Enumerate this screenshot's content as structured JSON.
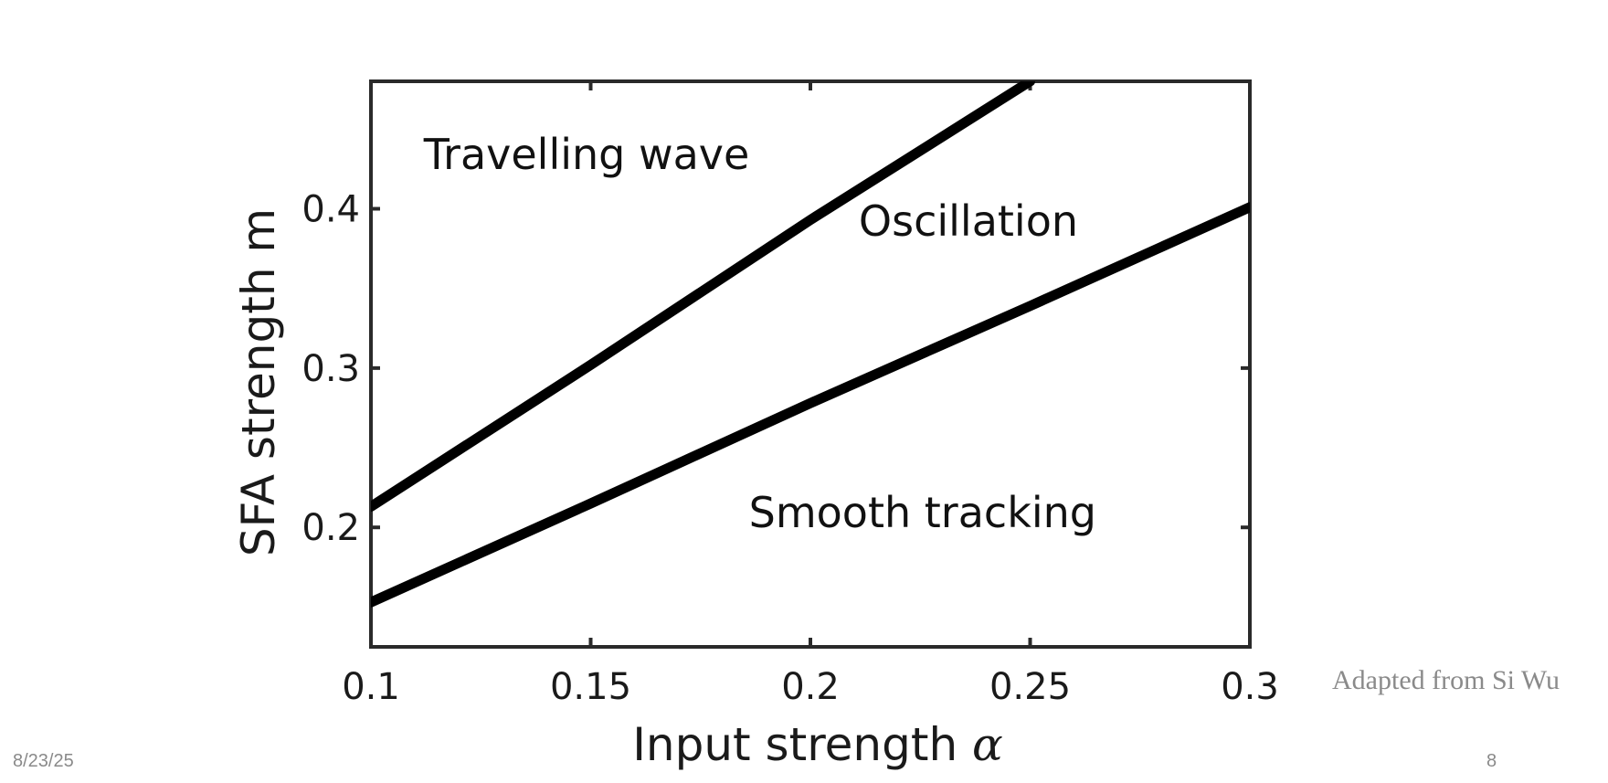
{
  "chart_data": {
    "type": "line",
    "title": "",
    "xlabel": "Input strength",
    "xlabel_symbol": "α",
    "ylabel": "SFA strength m",
    "xlim": [
      0.1,
      0.3
    ],
    "ylim": [
      0.125,
      0.48
    ],
    "xticks": [
      0.1,
      0.15,
      0.2,
      0.25,
      0.3
    ],
    "xtick_labels": [
      "0.1",
      "0.15",
      "0.2",
      "0.25",
      "0.3"
    ],
    "yticks": [
      0.2,
      0.3,
      0.4
    ],
    "ytick_labels": [
      "0.2",
      "0.3",
      "0.4"
    ],
    "grid": false,
    "series": [
      {
        "x": [
          0.1,
          0.15,
          0.2,
          0.25
        ],
        "y": [
          0.213,
          0.302,
          0.393,
          0.48
        ],
        "color": "#000000"
      },
      {
        "x": [
          0.1,
          0.15,
          0.2,
          0.25,
          0.3
        ],
        "y": [
          0.153,
          0.215,
          0.278,
          0.339,
          0.401
        ],
        "color": "#000000"
      }
    ],
    "annotations": [
      {
        "text": "Travelling wave",
        "x": 0.112,
        "y": 0.425
      },
      {
        "text": "Oscillation",
        "x": 0.211,
        "y": 0.383
      },
      {
        "text": "Smooth tracking",
        "x": 0.186,
        "y": 0.2
      }
    ]
  },
  "credit": "Adapted from Si Wu",
  "footer": {
    "date": "8/23/25",
    "page": "8"
  }
}
